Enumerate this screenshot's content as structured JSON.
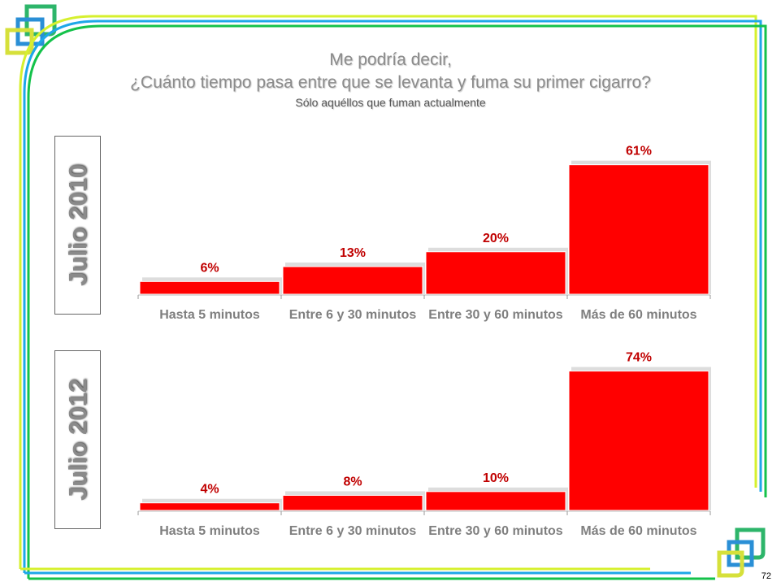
{
  "title": {
    "line1": "Me podría decir,",
    "line2": "¿Cuánto tiempo pasa entre que se levanta y fuma su primer cigarro?",
    "subtitle": "Sólo aquéllos que fuman actualmente"
  },
  "page_number": "72",
  "colors": {
    "bar": "#ff0000",
    "label": "#c00000",
    "axis_text": "#7f7f7f"
  },
  "chart_data": [
    {
      "type": "bar",
      "title": "Julio 2010",
      "categories": [
        "Hasta 5 minutos",
        "Entre 6 y 30 minutos",
        "Entre 30 y 60 minutos",
        "Más de 60 minutos"
      ],
      "values": [
        6,
        13,
        20,
        61
      ],
      "labels": [
        "6%",
        "13%",
        "20%",
        "61%"
      ],
      "ylim": [
        0,
        67
      ]
    },
    {
      "type": "bar",
      "title": "Julio 2012",
      "categories": [
        "Hasta 5 minutos",
        "Entre 6 y 30 minutos",
        "Entre 30 y 60 minutos",
        "Más de 60 minutos"
      ],
      "values": [
        4,
        8,
        10,
        74
      ],
      "labels": [
        "4%",
        "8%",
        "10%",
        "74%"
      ],
      "ylim": [
        0,
        82
      ]
    }
  ]
}
